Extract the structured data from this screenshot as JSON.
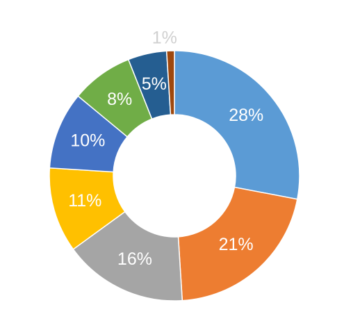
{
  "chart_data": {
    "type": "donut",
    "values": [
      28,
      21,
      16,
      11,
      10,
      8,
      5,
      1
    ],
    "value_labels": [
      "28%",
      "21%",
      "16%",
      "11%",
      "10%",
      "8%",
      "5%",
      "1%"
    ],
    "colors": [
      "#5b9bd5",
      "#ed7d31",
      "#a5a5a5",
      "#ffc000",
      "#4472c4",
      "#70ad47",
      "#255e91",
      "#9e480e"
    ]
  }
}
